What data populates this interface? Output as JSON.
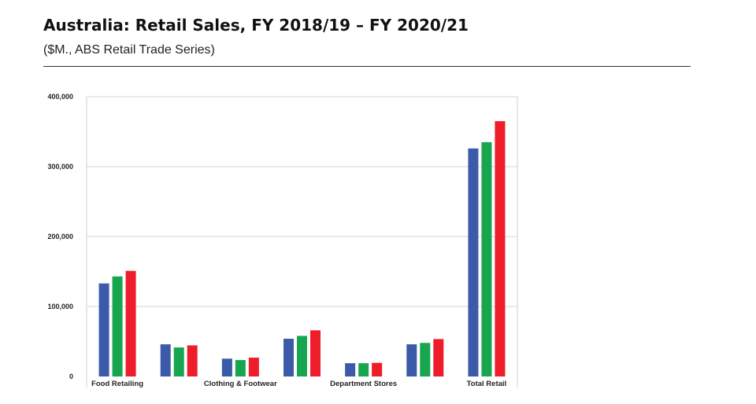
{
  "header": {
    "title": "Australia: Retail Sales, FY 2018/19 – FY 2020/21",
    "subtitle": "($M., ABS Retail Trade Series)"
  },
  "chart_data": {
    "type": "bar",
    "title": "Australia: Retail Sales, FY 2018/19 – FY 2020/21",
    "subtitle": "($M., ABS Retail Trade Series)",
    "xlabel": "",
    "ylabel": "",
    "ylim": [
      0,
      400000
    ],
    "yticks": [
      0,
      100000,
      200000,
      300000,
      400000
    ],
    "ytick_labels": [
      "0",
      "100,000",
      "200,000",
      "300,000",
      "400,000"
    ],
    "grid": true,
    "categories": [
      "Food Retailing",
      "",
      "Clothing & Footwear",
      "",
      "Department Stores",
      "",
      "Total Retail"
    ],
    "series": [
      {
        "color": "#3b5ba8",
        "values": [
          133000,
          46000,
          25500,
          54000,
          19000,
          46000,
          326000
        ]
      },
      {
        "color": "#18a550",
        "values": [
          143000,
          41500,
          23500,
          58000,
          19000,
          48000,
          335000
        ]
      },
      {
        "color": "#ee1d2b",
        "values": [
          151000,
          44500,
          27000,
          66000,
          19500,
          53500,
          365000
        ]
      }
    ]
  }
}
